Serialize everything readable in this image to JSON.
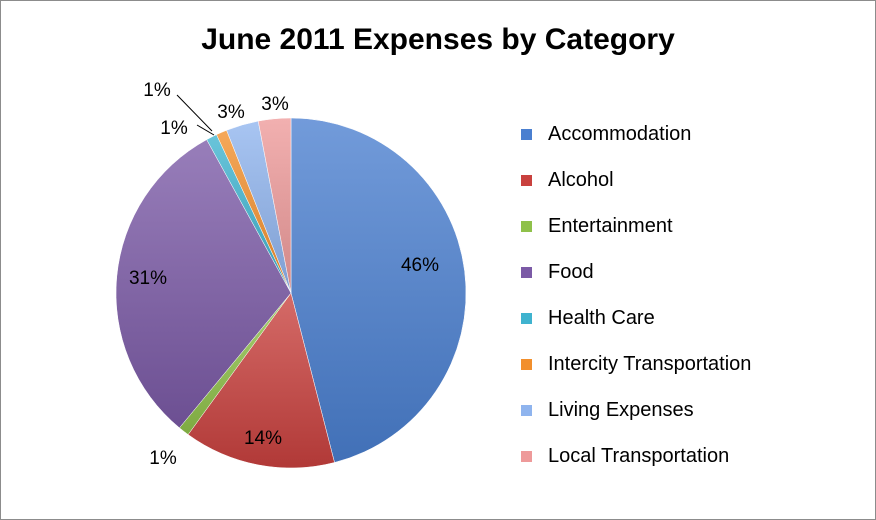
{
  "chart_data": {
    "type": "pie",
    "title": "June 2011 Expenses by Category",
    "legend_position": "right",
    "categories": [
      "Accommodation",
      "Alcohol",
      "Entertainment",
      "Food",
      "Health Care",
      "Intercity Transportation",
      "Living Expenses",
      "Local Transportation"
    ],
    "values": [
      46,
      14,
      1,
      31,
      1,
      1,
      3,
      3
    ],
    "data_labels": [
      "46%",
      "14%",
      "1%",
      "31%",
      "1%",
      "1%",
      "3%",
      "3%"
    ],
    "colors": [
      "#4a7fd0",
      "#c9413e",
      "#8fc14a",
      "#7b5aa6",
      "#3fb3cf",
      "#f28f2c",
      "#8fb4ee",
      "#ee9a9a"
    ]
  }
}
